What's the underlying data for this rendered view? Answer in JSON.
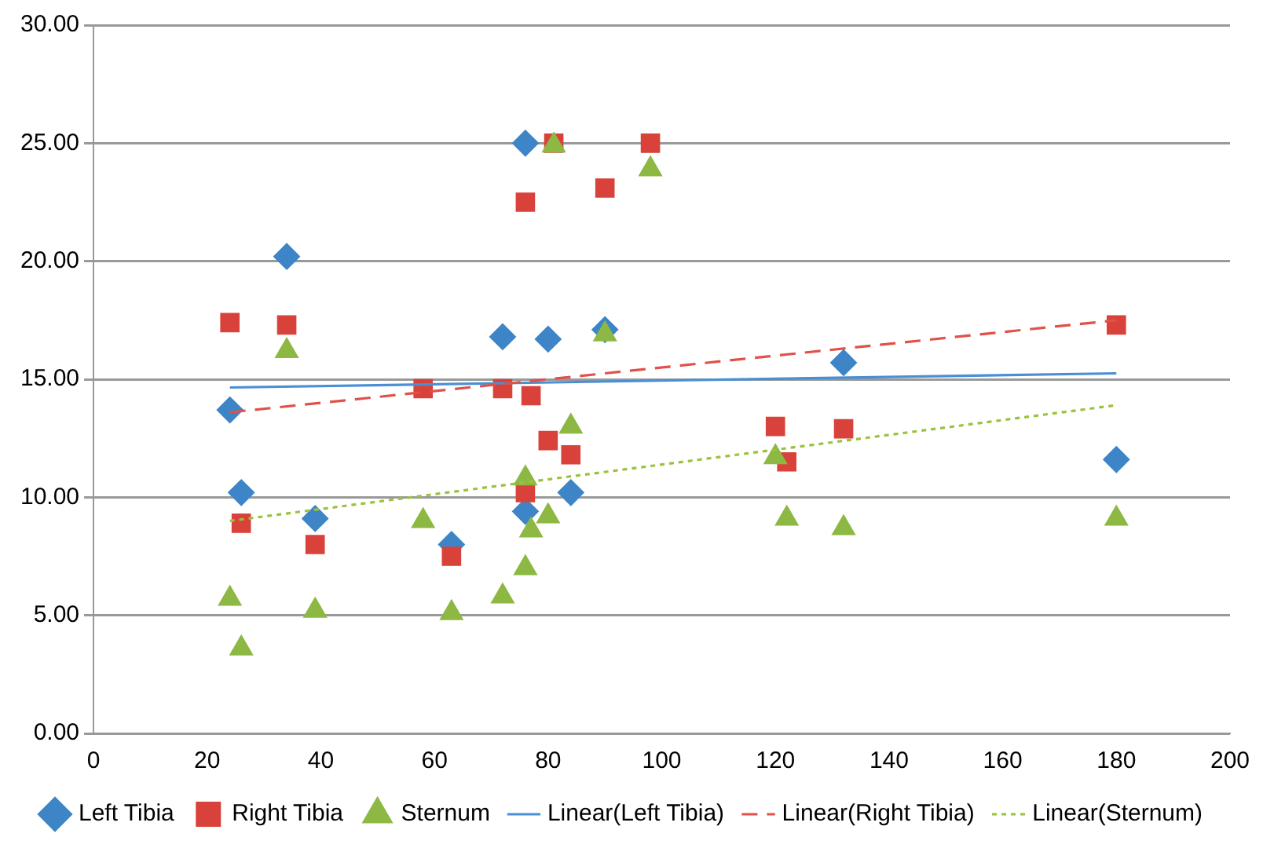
{
  "chart_data": {
    "type": "scatter",
    "xlim": [
      0,
      200
    ],
    "xticks": [
      0,
      20,
      40,
      60,
      80,
      100,
      120,
      140,
      160,
      180,
      200
    ],
    "ylim": [
      0,
      30
    ],
    "yticks": [
      {
        "value": 0,
        "label": "0.00"
      },
      {
        "value": 5,
        "label": "5.00"
      },
      {
        "value": 10,
        "label": "10.00"
      },
      {
        "value": 15,
        "label": "15.00"
      },
      {
        "value": 20,
        "label": "20.00"
      },
      {
        "value": 25,
        "label": "25.00"
      },
      {
        "value": 30,
        "label": "30.00"
      }
    ],
    "grid": "y",
    "legend": "bottom",
    "series": [
      {
        "name": "Left Tibia",
        "color": "#3d85c6",
        "marker": "diamond",
        "x": [
          24,
          26,
          34,
          39,
          63,
          72,
          76,
          76,
          80,
          84,
          90,
          132,
          180
        ],
        "values": [
          13.7,
          10.2,
          20.2,
          9.1,
          8.0,
          16.8,
          25.0,
          9.4,
          16.7,
          10.2,
          17.1,
          15.7,
          11.6
        ]
      },
      {
        "name": "Right Tibia",
        "color": "#d9423a",
        "marker": "square",
        "x": [
          24,
          26,
          34,
          39,
          58,
          63,
          72,
          76,
          76,
          77,
          80,
          81,
          84,
          90,
          98,
          120,
          122,
          132,
          180
        ],
        "values": [
          17.4,
          8.9,
          17.3,
          8.0,
          14.6,
          7.5,
          14.6,
          22.5,
          10.2,
          14.3,
          12.4,
          25.0,
          11.8,
          23.1,
          25.0,
          13.0,
          11.5,
          12.9,
          17.3
        ]
      },
      {
        "name": "Sternum",
        "color": "#8db843",
        "marker": "triangle",
        "x": [
          24,
          26,
          34,
          39,
          58,
          63,
          72,
          76,
          76,
          77,
          80,
          81,
          84,
          90,
          98,
          120,
          122,
          132,
          180
        ],
        "values": [
          5.7,
          3.6,
          16.2,
          5.2,
          9.0,
          5.1,
          5.8,
          7.0,
          10.8,
          8.6,
          9.2,
          24.9,
          13.0,
          16.9,
          23.9,
          11.7,
          9.1,
          8.7,
          9.1
        ]
      },
      {
        "name": "Linear(Left Tibia)",
        "type": "line",
        "color": "#4a8fd4",
        "marker": "none",
        "line_style": "solid",
        "x": [
          24,
          180
        ],
        "values": [
          14.65,
          15.25
        ]
      },
      {
        "name": "Linear(Right Tibia)",
        "type": "line",
        "color": "#e0514a",
        "marker": "none",
        "line_style": "dashed",
        "x": [
          24,
          180
        ],
        "values": [
          13.6,
          17.5
        ]
      },
      {
        "name": "Linear(Sternum)",
        "type": "line",
        "color": "#9bc23c",
        "marker": "none",
        "line_style": "dotted",
        "x": [
          24,
          180
        ],
        "values": [
          9.0,
          13.9
        ]
      }
    ]
  }
}
